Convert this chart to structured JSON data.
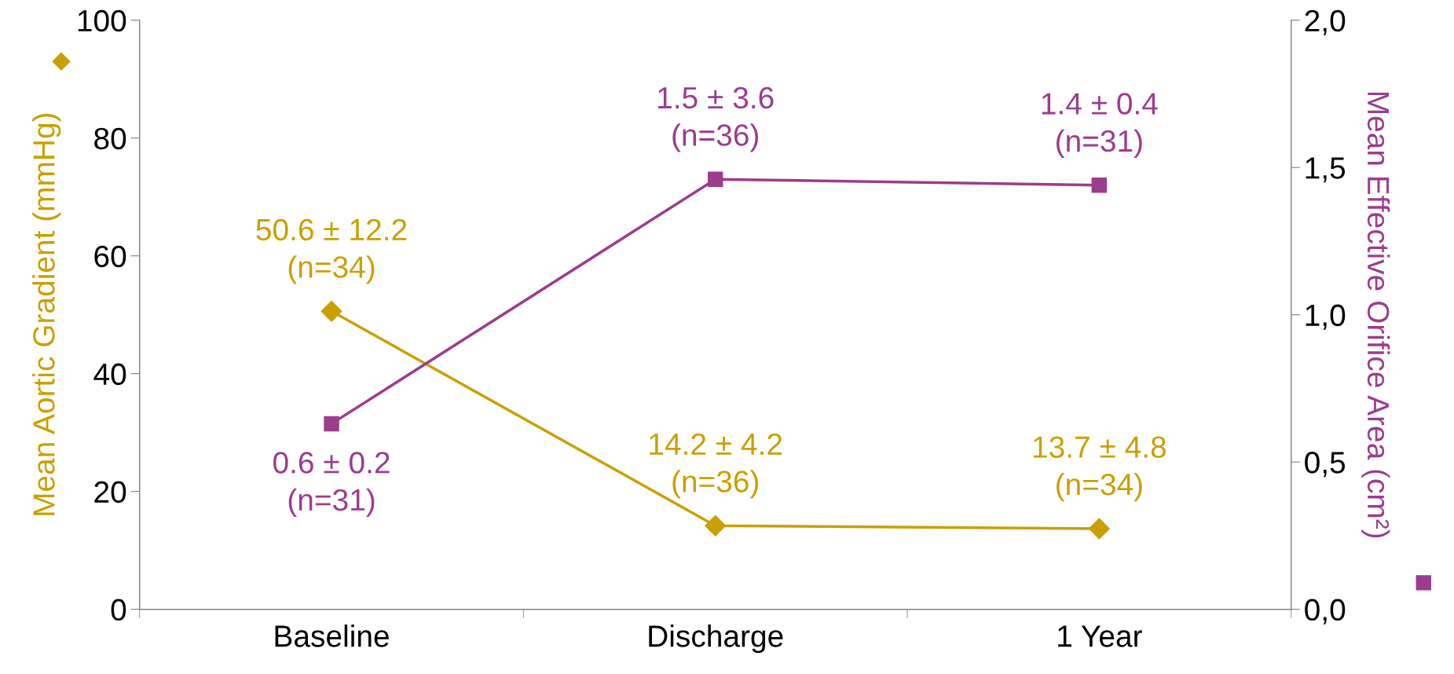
{
  "chart_data": {
    "type": "line",
    "categories": [
      "Baseline",
      "Discharge",
      "1 Year"
    ],
    "ylabel": "Mean Aortic Gradient (mmHg)",
    "y2label": "Mean Effective Orifice Area (cm²)",
    "ylim": [
      0,
      100
    ],
    "yticks": [
      0,
      20,
      40,
      60,
      80,
      100
    ],
    "y2lim": [
      0,
      2
    ],
    "y2ticks": [
      {
        "value": 0,
        "label": "0,0"
      },
      {
        "value": 0.5,
        "label": "0,5"
      },
      {
        "value": 1,
        "label": "1,0"
      },
      {
        "value": 1.5,
        "label": "1,5"
      },
      {
        "value": 2,
        "label": "2,0"
      }
    ],
    "grid": false,
    "legend": false,
    "series": [
      {
        "color": "#c9a000",
        "marker": "diamond",
        "values": [
          50.6,
          14.2,
          13.7
        ],
        "value_labels": [
          "50.6 ± 12.2\n(n=34)",
          "14.2 ± 4.2\n(n=36)",
          "13.7 ± 4.8\n(n=34)"
        ]
      },
      {
        "color": "#9b3d8c",
        "marker": "square",
        "axis": "y2",
        "values": [
          0.63,
          1.46,
          1.44
        ],
        "value_labels": [
          "0.6 ± 0.2\n(n=31)",
          "1.5 ± 3.6\n(n=36)",
          "1.4 ± 0.4\n(n=31)"
        ]
      }
    ]
  }
}
